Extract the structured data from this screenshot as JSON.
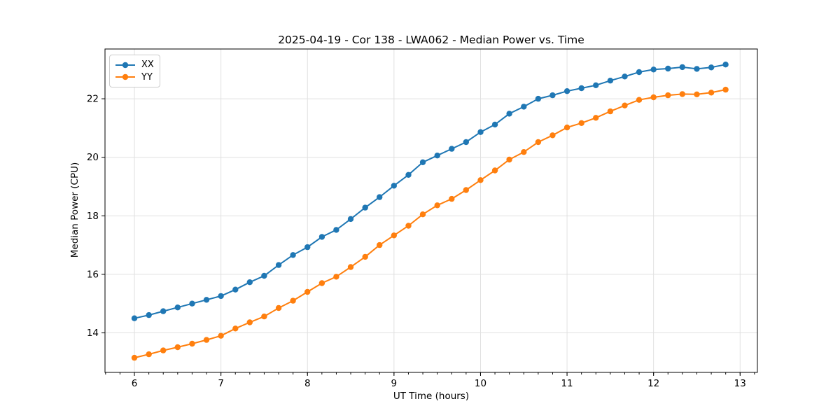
{
  "chart_data": {
    "type": "line",
    "title": "2025-04-19 - Cor 138 - LWA062 - Median Power vs. Time",
    "xlabel": "UT Time (hours)",
    "ylabel": "Median Power (CPU)",
    "xlim": [
      5.66,
      13.2
    ],
    "ylim": [
      12.65,
      23.7
    ],
    "x_major_ticks": [
      6,
      7,
      8,
      9,
      10,
      11,
      12,
      13
    ],
    "y_major_ticks": [
      14,
      16,
      18,
      20,
      22
    ],
    "x_minor_interval": 0.166667,
    "grid": true,
    "grid_color": "#e0e0e0",
    "legend_position": "upper-left",
    "x": [
      6.0,
      6.167,
      6.333,
      6.5,
      6.667,
      6.833,
      7.0,
      7.167,
      7.333,
      7.5,
      7.667,
      7.833,
      8.0,
      8.167,
      8.333,
      8.5,
      8.667,
      8.833,
      9.0,
      9.167,
      9.333,
      9.5,
      9.667,
      9.833,
      10.0,
      10.167,
      10.333,
      10.5,
      10.667,
      10.833,
      11.0,
      11.167,
      11.333,
      11.5,
      11.667,
      11.833,
      12.0,
      12.167,
      12.333,
      12.5,
      12.667,
      12.833
    ],
    "series": [
      {
        "name": "XX",
        "color": "#1f77b4",
        "values": [
          14.5,
          14.61,
          14.74,
          14.87,
          15.0,
          15.13,
          15.26,
          15.48,
          15.73,
          15.95,
          16.32,
          16.66,
          16.93,
          17.28,
          17.52,
          17.89,
          18.28,
          18.64,
          19.03,
          19.4,
          19.83,
          20.06,
          20.29,
          20.52,
          20.86,
          21.12,
          21.49,
          21.73,
          22.0,
          22.12,
          22.26,
          22.36,
          22.46,
          22.62,
          22.76,
          22.91,
          23.0,
          23.03,
          23.08,
          23.02,
          23.07,
          23.17
        ]
      },
      {
        "name": "YY",
        "color": "#ff7f0e",
        "values": [
          13.15,
          13.27,
          13.4,
          13.51,
          13.63,
          13.76,
          13.9,
          14.15,
          14.36,
          14.56,
          14.85,
          15.1,
          15.4,
          15.7,
          15.92,
          16.25,
          16.6,
          17.0,
          17.33,
          17.66,
          18.05,
          18.36,
          18.58,
          18.88,
          19.22,
          19.55,
          19.92,
          20.18,
          20.52,
          20.75,
          21.02,
          21.17,
          21.35,
          21.57,
          21.77,
          21.96,
          22.05,
          22.12,
          22.16,
          22.15,
          22.21,
          22.31
        ]
      }
    ]
  }
}
